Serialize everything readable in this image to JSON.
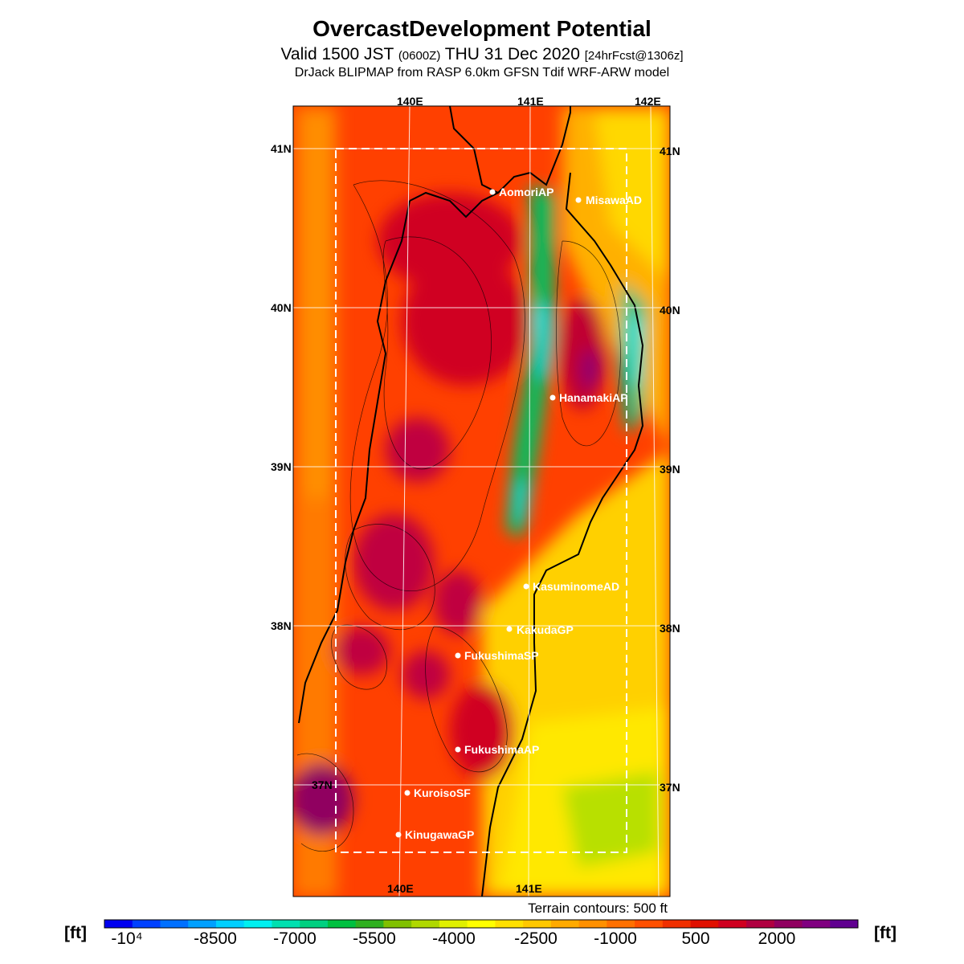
{
  "title": "OvercastDevelopment Potential",
  "subtitle": {
    "prefix": "Valid 1500 JST ",
    "zulu": "(0600Z)",
    "main": " THU 31 Dec 2020 ",
    "forecast": "[24hrFcst@1306z]"
  },
  "model_line": "DrJack BLIPMAP from RASP 6.0km GFSN Tdif WRF-ARW model",
  "axes": {
    "lon_top": [
      "140E",
      "141E",
      "142E"
    ],
    "lon_bottom": [
      "140E",
      "141E"
    ],
    "lat_left": [
      "41N",
      "40N",
      "39N",
      "38N",
      "37N"
    ],
    "lat_right": [
      "41N",
      "40N",
      "39N",
      "38N",
      "37N"
    ]
  },
  "stations": [
    {
      "name": "AomoriAP"
    },
    {
      "name": "MisawaAD"
    },
    {
      "name": "HanamakiAP"
    },
    {
      "name": "KasuminomeAD"
    },
    {
      "name": "KakudaGP"
    },
    {
      "name": "FukushimaSP"
    },
    {
      "name": "FukushimaAP"
    },
    {
      "name": "KuroisoSF"
    },
    {
      "name": "KinugawaGP"
    }
  ],
  "terrain_note": "Terrain contours: 500 ft",
  "colorbar": {
    "unit": "[ft]",
    "tick_labels": [
      "-10⁴",
      "-8500",
      "-7000",
      "-5500",
      "-4000",
      "-2500",
      "-1000",
      "500",
      "2000"
    ],
    "colors": [
      "#0000f0",
      "#0040ff",
      "#0070ff",
      "#00a0ff",
      "#00d0ff",
      "#00f0f0",
      "#00e0b0",
      "#00d080",
      "#00c040",
      "#30b020",
      "#80c000",
      "#b0d800",
      "#e0f000",
      "#ffff00",
      "#ffe000",
      "#ffc800",
      "#ffaa00",
      "#ff9000",
      "#ff7000",
      "#ff5000",
      "#f03000",
      "#e01000",
      "#d00020",
      "#b00040",
      "#900060",
      "#800080",
      "#600090"
    ]
  }
}
